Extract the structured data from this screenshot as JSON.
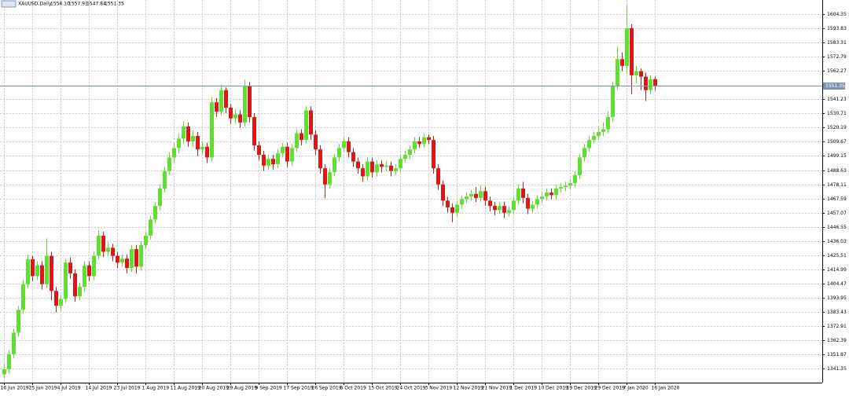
{
  "header": {
    "symbol": "XAUUSD,Daily",
    "ohlc": [
      "1556.10",
      "1557.91",
      "1547.84",
      "1551.35"
    ]
  },
  "chart_data": {
    "type": "candlestick",
    "ylim": [
      1330.9,
      1614.9
    ],
    "xlim": [
      -0.8,
      173.5
    ],
    "yticks": [
      1604.35,
      1593.83,
      1583.31,
      1572.79,
      1562.27,
      1541.23,
      1530.71,
      1520.19,
      1509.67,
      1499.15,
      1488.63,
      1478.11,
      1467.59,
      1457.07,
      1446.55,
      1436.03,
      1425.51,
      1414.99,
      1404.47,
      1393.95,
      1383.43,
      1372.91,
      1362.39,
      1351.87,
      1341.35
    ],
    "xticks": [
      {
        "value": 0,
        "label": "16 Jun 2019"
      },
      {
        "value": 6,
        "label": "25 Jun 2019"
      },
      {
        "value": 12,
        "label": "4 Jul 2019"
      },
      {
        "value": 18,
        "label": "14 Jul 2019"
      },
      {
        "value": 24,
        "label": "23 Jul 2019"
      },
      {
        "value": 30,
        "label": "1 Aug 2019"
      },
      {
        "value": 36,
        "label": "11 Aug 2019"
      },
      {
        "value": 42,
        "label": "20 Aug 2019"
      },
      {
        "value": 48,
        "label": "29 Aug 2019"
      },
      {
        "value": 54,
        "label": "9 Sep 2019"
      },
      {
        "value": 60,
        "label": "17 Sep 2019"
      },
      {
        "value": 66,
        "label": "26 Sep 2019"
      },
      {
        "value": 72,
        "label": "6 Oct 2019"
      },
      {
        "value": 78,
        "label": "15 Oct 2019"
      },
      {
        "value": 84,
        "label": "24 Oct 2019"
      },
      {
        "value": 90,
        "label": "3 Nov 2019"
      },
      {
        "value": 96,
        "label": "12 Nov 2019"
      },
      {
        "value": 102,
        "label": "21 Nov 2019"
      },
      {
        "value": 108,
        "label": "1 Dec 2019"
      },
      {
        "value": 114,
        "label": "10 Dec 2019"
      },
      {
        "value": 120,
        "label": "19 Dec 2019"
      },
      {
        "value": 126,
        "label": "29 Dec 2019"
      },
      {
        "value": 132,
        "label": "7 Jan 2020"
      },
      {
        "value": 138,
        "label": "16 Jan 2020"
      }
    ],
    "grid": true,
    "up_color": "#5ee02e",
    "down_color": "#e51414",
    "price_line": {
      "value": 1551.35,
      "label": "1551.35",
      "color": "#7895b4"
    },
    "open": [
      1337,
      1340.8,
      1352,
      1368,
      1385,
      1404,
      1422.5,
      1410,
      1418,
      1404,
      1425,
      1399,
      1388,
      1393,
      1420,
      1412,
      1395,
      1402,
      1418,
      1410,
      1425,
      1440,
      1428,
      1431,
      1425,
      1420,
      1423,
      1416,
      1430,
      1417,
      1433,
      1440,
      1452,
      1462,
      1475,
      1488,
      1498,
      1505,
      1512,
      1521,
      1510,
      1514,
      1504,
      1506,
      1498,
      1539,
      1532,
      1548,
      1535,
      1527,
      1530,
      1524,
      1551,
      1528,
      1507,
      1500,
      1492,
      1497,
      1493,
      1501,
      1506,
      1495,
      1505,
      1516,
      1511,
      1533,
      1515,
      1504,
      1490,
      1478,
      1487,
      1498,
      1505,
      1510,
      1502,
      1495,
      1490,
      1484,
      1495,
      1487,
      1493,
      1491,
      1492,
      1488,
      1490,
      1497,
      1500,
      1504,
      1510,
      1508,
      1513,
      1511,
      1490,
      1478,
      1466,
      1461,
      1457,
      1463,
      1467,
      1469,
      1471,
      1468,
      1473,
      1466,
      1462,
      1459,
      1462,
      1457,
      1459,
      1466,
      1475,
      1468,
      1460,
      1463,
      1467,
      1469,
      1472,
      1470,
      1475,
      1476,
      1477,
      1479,
      1485,
      1498,
      1505,
      1511,
      1514,
      1517,
      1519,
      1528,
      1551,
      1571,
      1566,
      1594,
      1559,
      1562,
      1558,
      1548,
      1556.1
    ],
    "high": [
      1345,
      1355,
      1371,
      1388,
      1407,
      1426,
      1425,
      1421,
      1421,
      1438,
      1428,
      1402,
      1396,
      1423,
      1424,
      1415,
      1405,
      1421,
      1421,
      1428,
      1444,
      1443,
      1435,
      1434,
      1428,
      1426,
      1426,
      1433,
      1433,
      1436,
      1443,
      1455,
      1465,
      1478,
      1491,
      1502,
      1509,
      1516,
      1525,
      1524,
      1518,
      1517,
      1510,
      1509,
      1543,
      1542,
      1552,
      1550,
      1538,
      1534,
      1533,
      1556,
      1554,
      1531,
      1510,
      1503,
      1500,
      1500,
      1504,
      1509,
      1509,
      1508,
      1519,
      1519,
      1536,
      1536,
      1518,
      1507,
      1493,
      1490,
      1501,
      1508,
      1513,
      1513,
      1505,
      1498,
      1493,
      1498,
      1498,
      1496,
      1496,
      1495,
      1495,
      1493,
      1500,
      1503,
      1507,
      1513,
      1513,
      1516,
      1515,
      1514,
      1493,
      1481,
      1469,
      1464,
      1466,
      1470,
      1472,
      1474,
      1476,
      1477,
      1476,
      1469,
      1465,
      1465,
      1465,
      1462,
      1469,
      1478,
      1480,
      1471,
      1466,
      1470,
      1472,
      1475,
      1475,
      1478,
      1479,
      1480,
      1482,
      1488,
      1501,
      1508,
      1514,
      1517,
      1520,
      1524,
      1532,
      1554,
      1580,
      1576,
      1611,
      1597,
      1566,
      1564,
      1561,
      1559,
      1557.91
    ],
    "low": [
      1334,
      1338,
      1349,
      1365,
      1382,
      1401,
      1406,
      1407,
      1400,
      1401,
      1392,
      1383,
      1384,
      1390,
      1408,
      1391,
      1392,
      1399,
      1406,
      1407,
      1422,
      1424,
      1425,
      1421,
      1416,
      1417,
      1412,
      1413,
      1412,
      1414,
      1430,
      1437,
      1449,
      1459,
      1472,
      1485,
      1494,
      1501,
      1508,
      1506,
      1506,
      1499,
      1500,
      1494,
      1495,
      1528,
      1529,
      1531,
      1523,
      1523,
      1520,
      1521,
      1524,
      1503,
      1496,
      1488,
      1489,
      1489,
      1490,
      1498,
      1491,
      1492,
      1502,
      1507,
      1508,
      1511,
      1500,
      1486,
      1468,
      1475,
      1484,
      1495,
      1502,
      1498,
      1491,
      1486,
      1480,
      1481,
      1483,
      1484,
      1487,
      1488,
      1484,
      1485,
      1487,
      1494,
      1497,
      1501,
      1505,
      1505,
      1508,
      1486,
      1474,
      1462,
      1457,
      1450,
      1454,
      1460,
      1464,
      1466,
      1465,
      1465,
      1462,
      1458,
      1455,
      1456,
      1453,
      1454,
      1456,
      1463,
      1464,
      1456,
      1457,
      1460,
      1464,
      1466,
      1467,
      1467,
      1472,
      1473,
      1474,
      1476,
      1482,
      1495,
      1502,
      1508,
      1511,
      1514,
      1516,
      1525,
      1548,
      1562,
      1560,
      1545,
      1553,
      1548,
      1540,
      1545,
      1547.84
    ],
    "close": [
      1340.8,
      1352,
      1368,
      1385,
      1404,
      1422.5,
      1410,
      1418,
      1404,
      1425,
      1399,
      1388,
      1393,
      1420,
      1412,
      1395,
      1402,
      1418,
      1410,
      1425,
      1440,
      1428,
      1431,
      1425,
      1420,
      1423,
      1416,
      1430,
      1417,
      1433,
      1440,
      1452,
      1462,
      1475,
      1488,
      1498,
      1505,
      1512,
      1521,
      1510,
      1514,
      1504,
      1506,
      1498,
      1539,
      1532,
      1548,
      1535,
      1527,
      1530,
      1524,
      1551,
      1528,
      1507,
      1500,
      1492,
      1497,
      1493,
      1501,
      1506,
      1495,
      1505,
      1516,
      1511,
      1533,
      1515,
      1504,
      1490,
      1478,
      1487,
      1498,
      1505,
      1510,
      1502,
      1495,
      1490,
      1484,
      1495,
      1487,
      1493,
      1491,
      1492,
      1488,
      1490,
      1497,
      1500,
      1504,
      1510,
      1508,
      1513,
      1511,
      1490,
      1478,
      1466,
      1461,
      1457,
      1463,
      1467,
      1469,
      1471,
      1468,
      1473,
      1466,
      1462,
      1459,
      1462,
      1457,
      1459,
      1466,
      1475,
      1468,
      1460,
      1463,
      1467,
      1469,
      1472,
      1470,
      1475,
      1476,
      1477,
      1479,
      1485,
      1498,
      1505,
      1511,
      1514,
      1517,
      1519,
      1528,
      1551,
      1571,
      1566,
      1594,
      1559,
      1562,
      1558,
      1548,
      1556.1,
      1551.35
    ]
  }
}
